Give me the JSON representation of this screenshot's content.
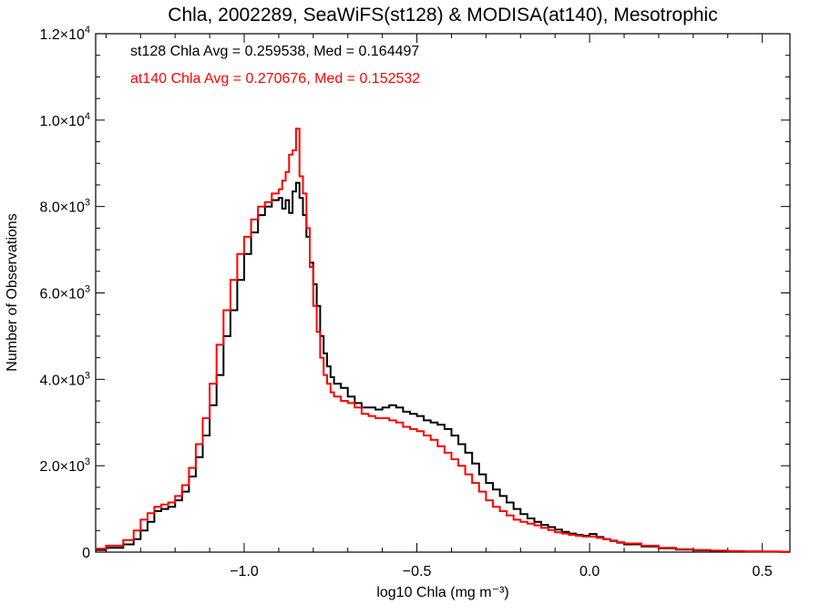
{
  "chart_data": {
    "type": "line",
    "title": "Chla, 2002289, SeaWiFS(st128) & MODISA(at140), Mesotrophic",
    "xlabel": "log10 Chla (mg m⁻³)",
    "ylabel": "Number of Observations",
    "xlim": [
      -1.43,
      0.58
    ],
    "ylim": [
      0,
      12000
    ],
    "grid": false,
    "step": true,
    "x_ticks": [
      {
        "value": -1.0,
        "label": "−1.0"
      },
      {
        "value": -0.5,
        "label": "−0.5"
      },
      {
        "value": 0.0,
        "label": "0.0"
      },
      {
        "value": 0.5,
        "label": "0.5"
      }
    ],
    "y_ticks": [
      {
        "value": 0,
        "label": "0"
      },
      {
        "value": 2000,
        "label": "2.0×10",
        "exp": "3"
      },
      {
        "value": 4000,
        "label": "4.0×10",
        "exp": "3"
      },
      {
        "value": 6000,
        "label": "6.0×10",
        "exp": "3"
      },
      {
        "value": 8000,
        "label": "8.0×10",
        "exp": "3"
      },
      {
        "value": 10000,
        "label": "1.0×10",
        "exp": "4"
      },
      {
        "value": 12000,
        "label": "1.2×10",
        "exp": "4"
      }
    ],
    "annotations": [
      {
        "text": "st128 Chla Avg = 0.259538, Med = 0.164497",
        "color": "#000000"
      },
      {
        "text": "at140 Chla Avg = 0.270676, Med = 0.152532",
        "color": "#ff0000"
      }
    ],
    "series": [
      {
        "color": "#000000",
        "x": [
          -1.43,
          -1.4,
          -1.35,
          -1.32,
          -1.3,
          -1.28,
          -1.26,
          -1.24,
          -1.22,
          -1.2,
          -1.18,
          -1.16,
          -1.14,
          -1.12,
          -1.1,
          -1.08,
          -1.06,
          -1.04,
          -1.02,
          -1.0,
          -0.98,
          -0.96,
          -0.94,
          -0.92,
          -0.9,
          -0.89,
          -0.88,
          -0.87,
          -0.86,
          -0.85,
          -0.84,
          -0.83,
          -0.82,
          -0.81,
          -0.8,
          -0.79,
          -0.78,
          -0.77,
          -0.76,
          -0.75,
          -0.74,
          -0.72,
          -0.7,
          -0.68,
          -0.66,
          -0.64,
          -0.62,
          -0.6,
          -0.58,
          -0.56,
          -0.54,
          -0.52,
          -0.5,
          -0.48,
          -0.46,
          -0.44,
          -0.42,
          -0.4,
          -0.38,
          -0.36,
          -0.34,
          -0.32,
          -0.3,
          -0.28,
          -0.26,
          -0.24,
          -0.22,
          -0.2,
          -0.18,
          -0.16,
          -0.14,
          -0.12,
          -0.1,
          -0.08,
          -0.06,
          -0.04,
          -0.02,
          0.0,
          0.02,
          0.04,
          0.06,
          0.08,
          0.1,
          0.15,
          0.2,
          0.25,
          0.3,
          0.35,
          0.4,
          0.45,
          0.5,
          0.55,
          0.58
        ],
        "y": [
          50,
          100,
          180,
          300,
          500,
          700,
          950,
          1000,
          1050,
          1200,
          1400,
          1750,
          2200,
          2700,
          3400,
          4100,
          5000,
          5600,
          6300,
          6900,
          7400,
          7800,
          8000,
          8150,
          8200,
          7950,
          8150,
          7850,
          8350,
          8550,
          8200,
          7800,
          7300,
          6700,
          6200,
          5700,
          5000,
          4600,
          4300,
          4050,
          3900,
          3800,
          3600,
          3450,
          3350,
          3350,
          3300,
          3350,
          3400,
          3350,
          3250,
          3200,
          3150,
          3050,
          3000,
          2950,
          2850,
          2700,
          2500,
          2300,
          2050,
          1800,
          1600,
          1450,
          1300,
          1150,
          1000,
          880,
          780,
          700,
          630,
          580,
          520,
          470,
          430,
          400,
          380,
          420,
          350,
          300,
          260,
          220,
          180,
          130,
          90,
          60,
          40,
          30,
          20,
          15,
          10,
          5,
          5
        ]
      },
      {
        "color": "#ff0000",
        "x": [
          -1.43,
          -1.4,
          -1.35,
          -1.32,
          -1.3,
          -1.28,
          -1.26,
          -1.24,
          -1.22,
          -1.2,
          -1.18,
          -1.16,
          -1.14,
          -1.12,
          -1.1,
          -1.08,
          -1.06,
          -1.04,
          -1.02,
          -1.0,
          -0.98,
          -0.96,
          -0.94,
          -0.92,
          -0.9,
          -0.89,
          -0.88,
          -0.87,
          -0.86,
          -0.85,
          -0.84,
          -0.83,
          -0.82,
          -0.81,
          -0.8,
          -0.79,
          -0.78,
          -0.77,
          -0.76,
          -0.75,
          -0.74,
          -0.72,
          -0.7,
          -0.68,
          -0.66,
          -0.64,
          -0.62,
          -0.6,
          -0.58,
          -0.56,
          -0.54,
          -0.52,
          -0.5,
          -0.48,
          -0.46,
          -0.44,
          -0.42,
          -0.4,
          -0.38,
          -0.36,
          -0.34,
          -0.32,
          -0.3,
          -0.28,
          -0.26,
          -0.24,
          -0.22,
          -0.2,
          -0.18,
          -0.16,
          -0.14,
          -0.12,
          -0.1,
          -0.08,
          -0.06,
          -0.04,
          -0.02,
          0.0,
          0.02,
          0.04,
          0.06,
          0.08,
          0.1,
          0.15,
          0.2,
          0.25,
          0.3,
          0.35,
          0.4,
          0.45,
          0.5,
          0.55,
          0.58
        ],
        "y": [
          80,
          150,
          280,
          500,
          750,
          900,
          1050,
          1100,
          1150,
          1300,
          1550,
          1950,
          2500,
          3100,
          3900,
          4800,
          5600,
          6300,
          6900,
          7300,
          7700,
          8000,
          8100,
          8300,
          8400,
          8600,
          8800,
          9200,
          9300,
          9800,
          8700,
          8300,
          7500,
          6600,
          5700,
          5100,
          4500,
          4100,
          3900,
          3700,
          3600,
          3500,
          3450,
          3350,
          3200,
          3150,
          3100,
          3100,
          3050,
          3000,
          2900,
          2850,
          2800,
          2700,
          2600,
          2450,
          2300,
          2150,
          2000,
          1800,
          1600,
          1400,
          1200,
          1050,
          950,
          850,
          750,
          700,
          660,
          620,
          560,
          510,
          460,
          430,
          400,
          380,
          360,
          360,
          330,
          300,
          270,
          230,
          200,
          150,
          100,
          70,
          50,
          35,
          25,
          20,
          15,
          10,
          10
        ]
      }
    ]
  }
}
